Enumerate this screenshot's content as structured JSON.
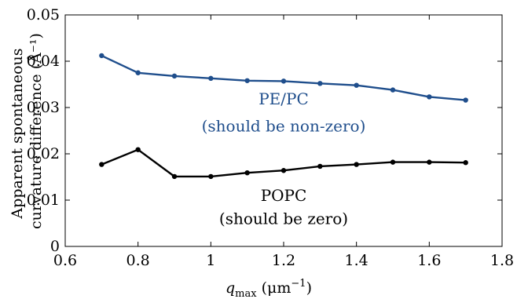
{
  "chart_data": {
    "type": "line",
    "title": "",
    "ylabel_lines": [
      "Apparent spontaneous",
      "curvature difference (Å⁻¹)"
    ],
    "xlabel_main": "q",
    "xlabel_sub": "max",
    "xlabel_rest": " (μm",
    "xlabel_sup": "−1",
    "xlabel_close": ")",
    "xlim": [
      0.6,
      1.8
    ],
    "ylim": [
      0,
      0.05
    ],
    "grid": false,
    "x_ticks": [
      0.6,
      0.8,
      1.0,
      1.2,
      1.4,
      1.6,
      1.8
    ],
    "x_tick_labels": [
      "0.6",
      "0.8",
      "1",
      "1.2",
      "1.4",
      "1.6",
      "1.8"
    ],
    "y_ticks": [
      0,
      0.01,
      0.02,
      0.03,
      0.04,
      0.05
    ],
    "y_tick_labels": [
      "0",
      "0.01",
      "0.02",
      "0.03",
      "0.04",
      "0.05"
    ],
    "x": [
      0.7,
      0.8,
      0.9,
      1.0,
      1.1,
      1.2,
      1.3,
      1.4,
      1.5,
      1.6,
      1.7
    ],
    "series": [
      {
        "id": "pe-pc",
        "color": "#1f4e8c",
        "values": [
          0.0412,
          0.0375,
          0.0368,
          0.0363,
          0.0358,
          0.0357,
          0.0352,
          0.0348,
          0.0338,
          0.0323,
          0.0316
        ]
      },
      {
        "id": "popc",
        "color": "#000000",
        "values": [
          0.0177,
          0.0209,
          0.0151,
          0.0151,
          0.0159,
          0.0164,
          0.0173,
          0.0177,
          0.0182,
          0.0182,
          0.0181
        ]
      }
    ],
    "annotations": [
      {
        "id": "pe-pc-name",
        "text": "PE/PC",
        "x": 1.2,
        "y": 0.0307,
        "color": "#1f4e8c"
      },
      {
        "id": "pe-pc-note",
        "text": "(should be non-zero)",
        "x": 1.2,
        "y": 0.0248,
        "color": "#1f4e8c"
      },
      {
        "id": "popc-name",
        "text": "POPC",
        "x": 1.2,
        "y": 0.0098,
        "color": "#000000"
      },
      {
        "id": "popc-note",
        "text": "(should be zero)",
        "x": 1.2,
        "y": 0.0048,
        "color": "#000000"
      }
    ]
  }
}
